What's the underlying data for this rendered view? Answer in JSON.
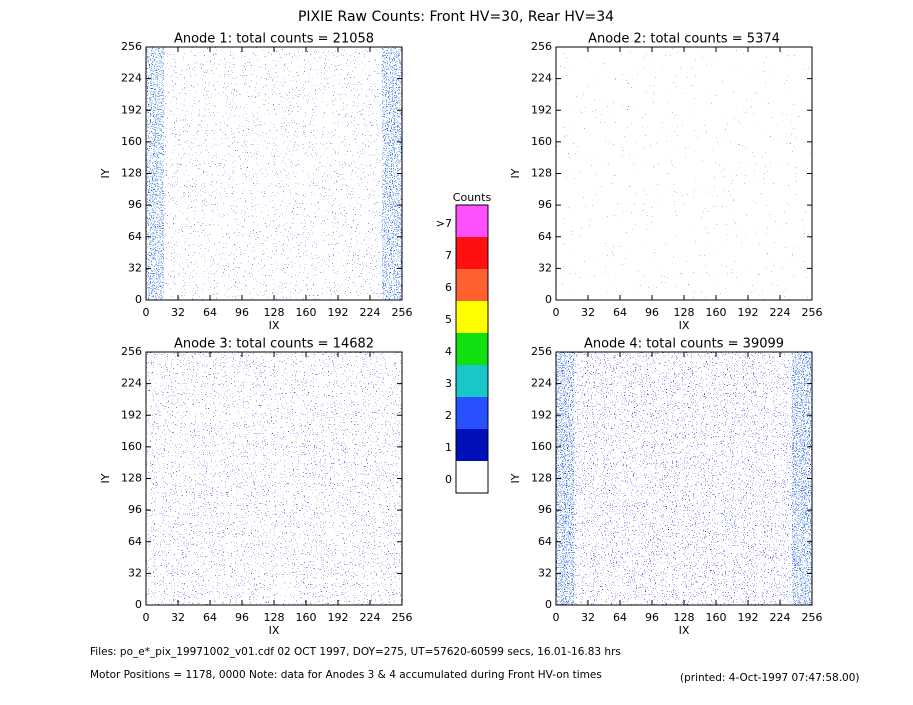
{
  "title": "PIXIE Raw Counts:  Front HV=30, Rear HV=34",
  "chart_data": [
    {
      "type": "heatmap",
      "title": "Anode 1: total counts = 21058",
      "xlabel": "IX",
      "ylabel": "IY",
      "xlim": [
        0,
        256
      ],
      "ylim": [
        0,
        256
      ],
      "xticks": [
        0,
        32,
        64,
        96,
        128,
        160,
        192,
        224,
        256
      ],
      "yticks": [
        0,
        32,
        64,
        96,
        128,
        160,
        192,
        224,
        256
      ]
    },
    {
      "type": "heatmap",
      "title": "Anode 2: total counts = 5374",
      "xlabel": "IX",
      "ylabel": "IY",
      "xlim": [
        0,
        256
      ],
      "ylim": [
        0,
        256
      ],
      "xticks": [
        0,
        32,
        64,
        96,
        128,
        160,
        192,
        224,
        256
      ],
      "yticks": [
        0,
        32,
        64,
        96,
        128,
        160,
        192,
        224,
        256
      ]
    },
    {
      "type": "heatmap",
      "title": "Anode 3: total counts = 14682",
      "xlabel": "IX",
      "ylabel": "IY",
      "xlim": [
        0,
        256
      ],
      "ylim": [
        0,
        256
      ],
      "xticks": [
        0,
        32,
        64,
        96,
        128,
        160,
        192,
        224,
        256
      ],
      "yticks": [
        0,
        32,
        64,
        96,
        128,
        160,
        192,
        224,
        256
      ]
    },
    {
      "type": "heatmap",
      "title": "Anode 4: total counts = 39099",
      "xlabel": "IX",
      "ylabel": "IY",
      "xlim": [
        0,
        256
      ],
      "ylim": [
        0,
        256
      ],
      "xticks": [
        0,
        32,
        64,
        96,
        128,
        160,
        192,
        224,
        256
      ],
      "yticks": [
        0,
        32,
        64,
        96,
        128,
        160,
        192,
        224,
        256
      ]
    }
  ],
  "colorbar": {
    "title": "Counts",
    "labels": [
      "0",
      "1",
      "2",
      "3",
      "4",
      "5",
      "6",
      "7",
      ">7"
    ],
    "colors": [
      "#ffffff",
      "#0010b8",
      "#2850ff",
      "#18c8c8",
      "#10e010",
      "#ffff00",
      "#ff6030",
      "#ff1010",
      "#ff50ff"
    ]
  },
  "footer": {
    "files": "Files: po_e*_pix_19971002_v01.cdf     02 OCT 1997, DOY=275, UT=57620-60599 secs, 16.01-16.83 hrs",
    "motor": "Motor Positions = 1178, 0000    Note: data for Anodes 3 & 4 accumulated during Front HV-on times",
    "printed": "(printed:  4-Oct-1997 07:47:58.00)"
  }
}
